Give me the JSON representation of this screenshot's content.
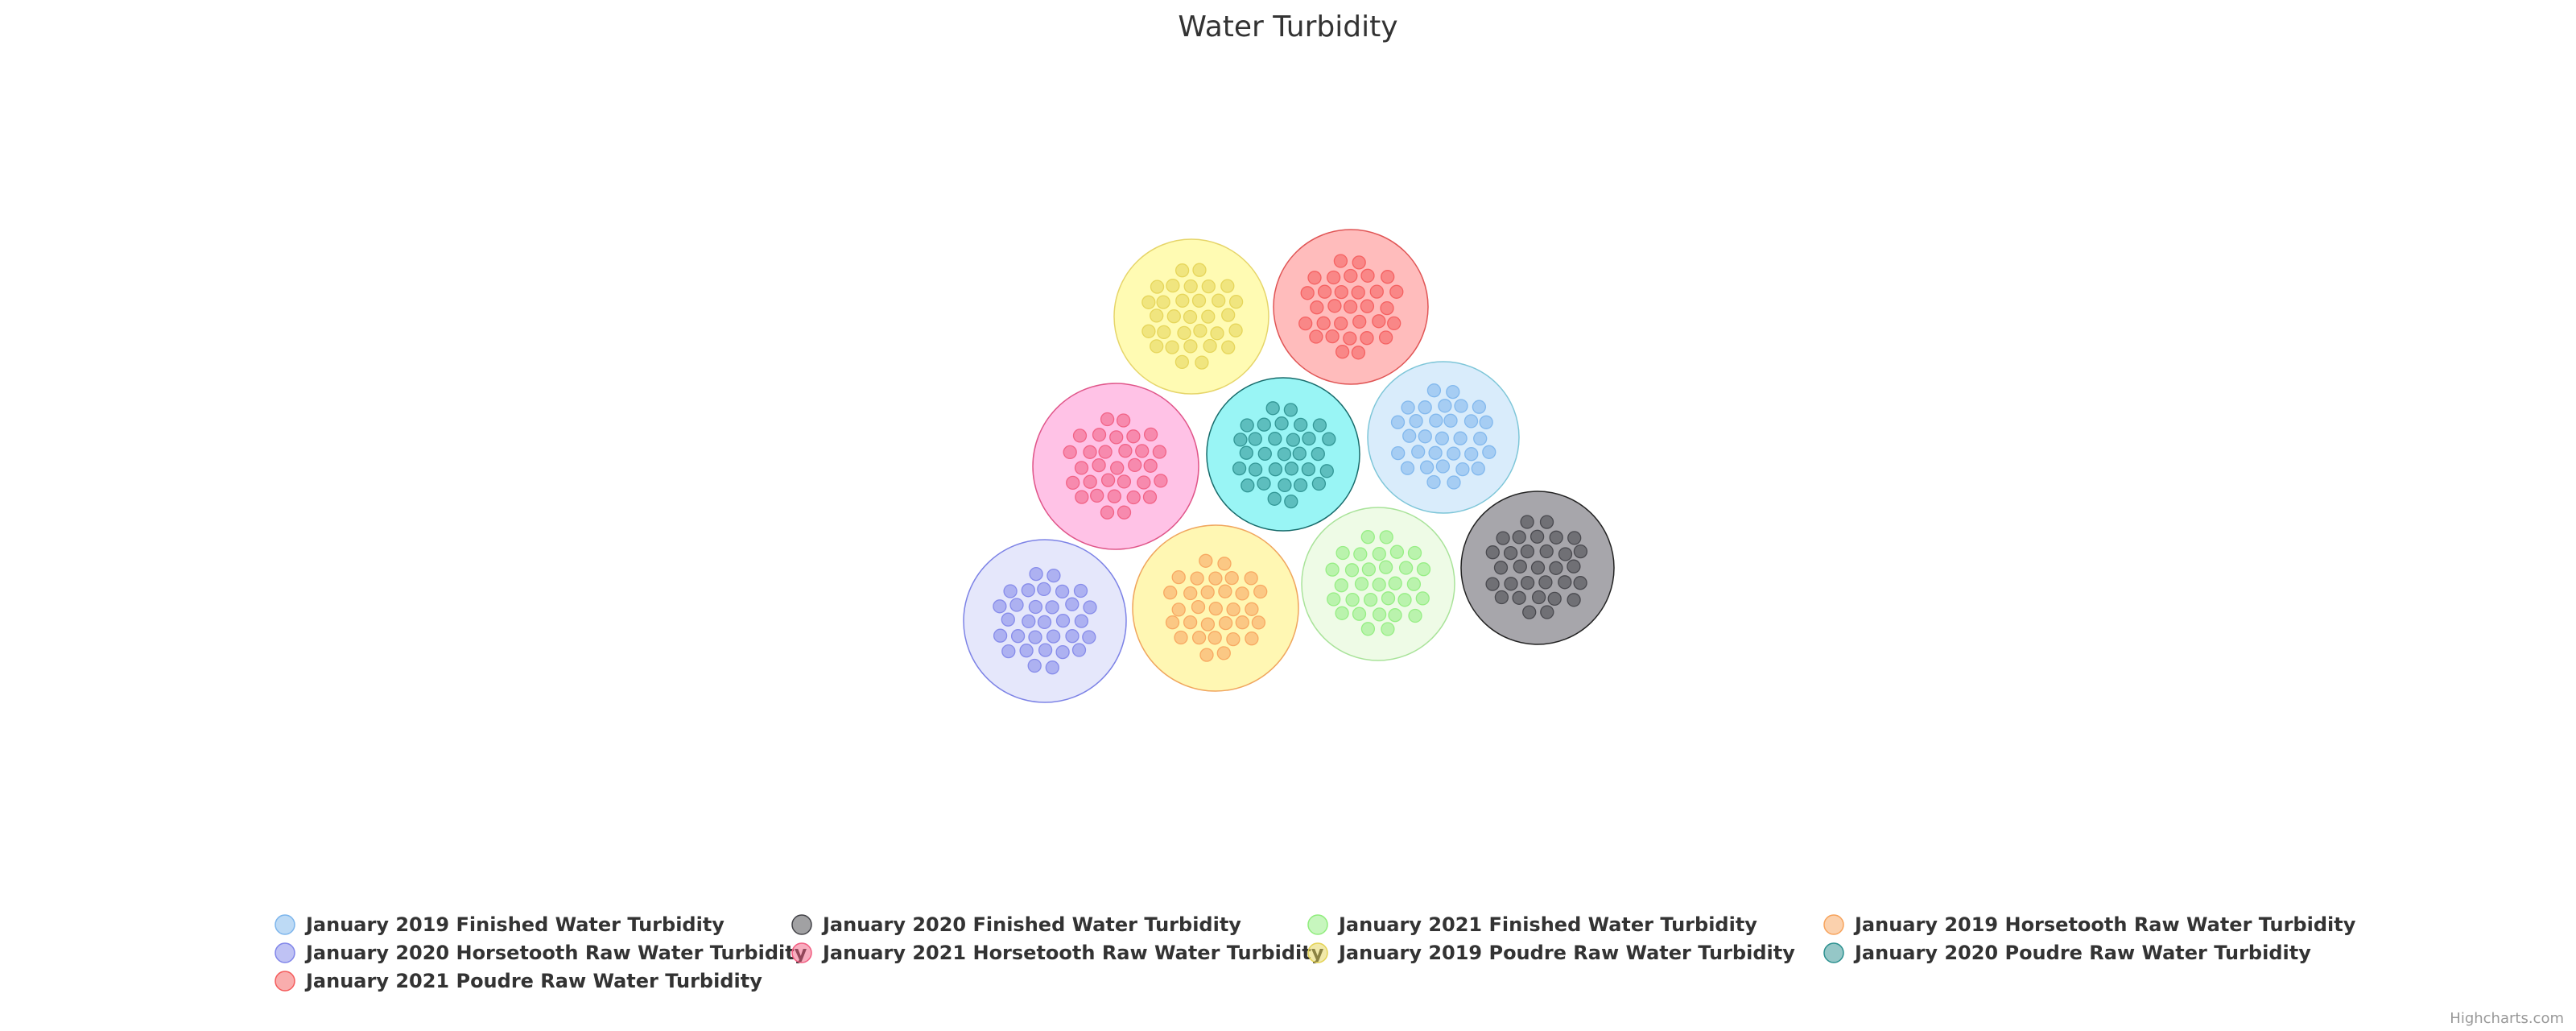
{
  "chart_data": {
    "type": "packedbubble",
    "title": "Water Turbidity",
    "credits": "Highcharts.com",
    "legend_position": "bottom",
    "series": [
      {
        "name": "January 2019 Finished Water Turbidity",
        "color": "#7cb5ec",
        "bubble_color": "#d9ecfb",
        "bubble_stroke": "#7ec6d8",
        "point_count": 31
      },
      {
        "name": "January 2020 Finished Water Turbidity",
        "color": "#434348",
        "bubble_color": "#a7a6ab",
        "bubble_stroke": "#222222",
        "point_count": 31
      },
      {
        "name": "January 2021 Finished Water Turbidity",
        "color": "#90ed7d",
        "bubble_color": "#eefbe6",
        "bubble_stroke": "#a9e39a",
        "point_count": 31
      },
      {
        "name": "January 2019 Horsetooth Raw Water Turbidity",
        "color": "#f7a35c",
        "bubble_color": "#fff7b3",
        "bubble_stroke": "#f0a65e",
        "point_count": 31
      },
      {
        "name": "January 2020 Horsetooth Raw Water Turbidity",
        "color": "#8085e9",
        "bubble_color": "#e5e7fb",
        "bubble_stroke": "#7d83e6",
        "point_count": 31
      },
      {
        "name": "January 2021 Horsetooth Raw Water Turbidity",
        "color": "#f15c80",
        "bubble_color": "#ffc2e6",
        "bubble_stroke": "#e0568a",
        "point_count": 31
      },
      {
        "name": "January 2019 Poudre Raw Water Turbidity",
        "color": "#e4d354",
        "bubble_color": "#fffbb3",
        "bubble_stroke": "#e6d56a",
        "point_count": 31
      },
      {
        "name": "January 2020 Poudre Raw Water Turbidity",
        "color": "#2b908f",
        "bubble_color": "#99f5f5",
        "bubble_stroke": "#176b6b",
        "point_count": 31
      },
      {
        "name": "January 2021 Poudre Raw Water Turbidity",
        "color": "#f45b5b",
        "bubble_color": "#ffbcbc",
        "bubble_stroke": "#e05555",
        "point_count": 31
      }
    ]
  }
}
